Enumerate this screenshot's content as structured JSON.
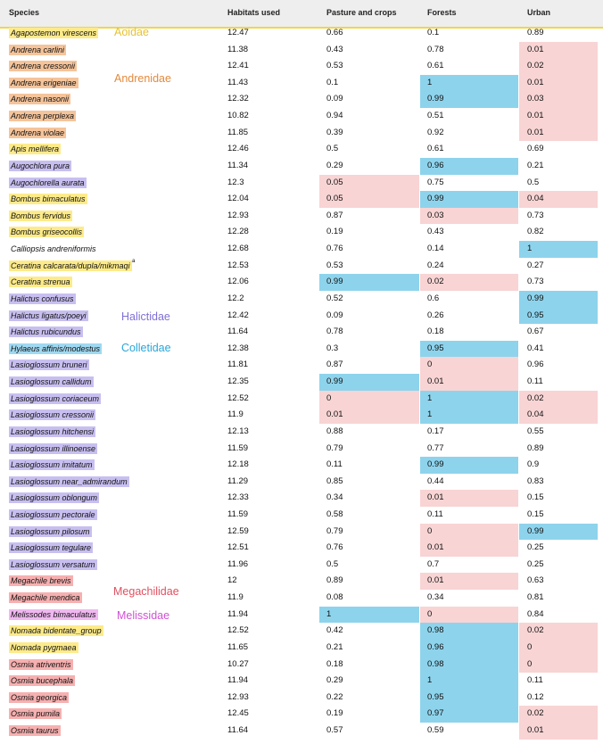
{
  "colors": {
    "low": "#f8d4d4",
    "high": "#8ed3ec",
    "header_bg": "#eeeeee",
    "header_border": "#f0d64a",
    "family": {
      "Apidae": "#fdeb8a",
      "Andrenidae": "#f5c49a",
      "Halictidae": "#c8bff0",
      "Colletidae": "#9fd8f0",
      "Megachilidae": "#f6b0b0",
      "Melissidae": "#f0b8f0",
      "none": "transparent"
    },
    "family_label": {
      "Apidae": "#e6c234",
      "Andrenidae": "#e38a3c",
      "Halictidae": "#8070d6",
      "Colletidae": "#2aa6d9",
      "Megachilidae": "#e05060",
      "Melissidae": "#cf52d4"
    }
  },
  "headers": [
    "Species",
    "Habitats used",
    "Pasture and crops",
    "Forests",
    "Urban"
  ],
  "family_labels": [
    {
      "key": "Apidae",
      "text": "Aoidae"
    },
    {
      "key": "Andrenidae",
      "text": "Andrenidae"
    },
    {
      "key": "Halictidae",
      "text": "Halictidae"
    },
    {
      "key": "Colletidae",
      "text": "Colletidae"
    },
    {
      "key": "Megachilidae",
      "text": "Megachilidae"
    },
    {
      "key": "Melissidae",
      "text": "Melissidae"
    }
  ],
  "rows": [
    {
      "species": "Agapostemon virescens",
      "family": "Apidae",
      "habitats": "12.47",
      "pasture": "0.66",
      "forests": "0.1",
      "urban": "0.89",
      "pasture_hl": "",
      "forests_hl": "",
      "urban_hl": ""
    },
    {
      "species": "Andrena carlini",
      "family": "Andrenidae",
      "habitats": "11.38",
      "pasture": "0.43",
      "forests": "0.78",
      "urban": "0.01",
      "pasture_hl": "",
      "forests_hl": "",
      "urban_hl": "low"
    },
    {
      "species": "Andrena cressonii",
      "family": "Andrenidae",
      "habitats": "12.41",
      "pasture": "0.53",
      "forests": "0.61",
      "urban": "0.02",
      "pasture_hl": "",
      "forests_hl": "",
      "urban_hl": "low"
    },
    {
      "species": "Andrena erigeniae",
      "family": "Andrenidae",
      "habitats": "11.43",
      "pasture": "0.1",
      "forests": "1",
      "urban": "0.01",
      "pasture_hl": "",
      "forests_hl": "high",
      "urban_hl": "low"
    },
    {
      "species": "Andrena nasonii",
      "family": "Andrenidae",
      "habitats": "12.32",
      "pasture": "0.09",
      "forests": "0.99",
      "urban": "0.03",
      "pasture_hl": "",
      "forests_hl": "high",
      "urban_hl": "low"
    },
    {
      "species": "Andrena perplexa",
      "family": "Andrenidae",
      "habitats": "10.82",
      "pasture": "0.94",
      "forests": "0.51",
      "urban": "0.01",
      "pasture_hl": "",
      "forests_hl": "",
      "urban_hl": "low"
    },
    {
      "species": "Andrena violae",
      "family": "Andrenidae",
      "habitats": "11.85",
      "pasture": "0.39",
      "forests": "0.92",
      "urban": "0.01",
      "pasture_hl": "",
      "forests_hl": "",
      "urban_hl": "low"
    },
    {
      "species": "Apis mellifera",
      "family": "Apidae",
      "habitats": "12.46",
      "pasture": "0.5",
      "forests": "0.61",
      "urban": "0.69",
      "pasture_hl": "",
      "forests_hl": "",
      "urban_hl": ""
    },
    {
      "species": "Augochlora pura",
      "family": "Halictidae",
      "habitats": "11.34",
      "pasture": "0.29",
      "forests": "0.96",
      "urban": "0.21",
      "pasture_hl": "",
      "forests_hl": "high",
      "urban_hl": ""
    },
    {
      "species": "Augochlorella aurata",
      "family": "Halictidae",
      "habitats": "12.3",
      "pasture": "0.05",
      "forests": "0.75",
      "urban": "0.5",
      "pasture_hl": "low",
      "forests_hl": "",
      "urban_hl": ""
    },
    {
      "species": "Bombus bimaculatus",
      "family": "Apidae",
      "habitats": "12.04",
      "pasture": "0.05",
      "forests": "0.99",
      "urban": "0.04",
      "pasture_hl": "low",
      "forests_hl": "high",
      "urban_hl": "low"
    },
    {
      "species": "Bombus fervidus",
      "family": "Apidae",
      "habitats": "12.93",
      "pasture": "0.87",
      "forests": "0.03",
      "urban": "0.73",
      "pasture_hl": "",
      "forests_hl": "low",
      "urban_hl": ""
    },
    {
      "species": "Bombus griseocollis",
      "family": "Apidae",
      "habitats": "12.28",
      "pasture": "0.19",
      "forests": "0.43",
      "urban": "0.82",
      "pasture_hl": "",
      "forests_hl": "",
      "urban_hl": ""
    },
    {
      "species": "Calliopsis andreniformis",
      "family": "none",
      "habitats": "12.68",
      "pasture": "0.76",
      "forests": "0.14",
      "urban": "1",
      "pasture_hl": "",
      "forests_hl": "",
      "urban_hl": "high"
    },
    {
      "species": "Ceratina calcarata/dupla/mikmaqi",
      "sup": "a",
      "family": "Apidae",
      "habitats": "12.53",
      "pasture": "0.53",
      "forests": "0.24",
      "urban": "0.27",
      "pasture_hl": "",
      "forests_hl": "",
      "urban_hl": ""
    },
    {
      "species": "Ceratina strenua",
      "family": "Apidae",
      "habitats": "12.06",
      "pasture": "0.99",
      "forests": "0.02",
      "urban": "0.73",
      "pasture_hl": "high",
      "forests_hl": "low",
      "urban_hl": ""
    },
    {
      "species": "Halictus confusus",
      "family": "Halictidae",
      "habitats": "12.2",
      "pasture": "0.52",
      "forests": "0.6",
      "urban": "0.99",
      "pasture_hl": "",
      "forests_hl": "",
      "urban_hl": "high"
    },
    {
      "species": "Halictus ligatus/poeyi",
      "family": "Halictidae",
      "habitats": "12.42",
      "pasture": "0.09",
      "forests": "0.26",
      "urban": "0.95",
      "pasture_hl": "",
      "forests_hl": "",
      "urban_hl": "high"
    },
    {
      "species": "Halictus rubicundus",
      "family": "Halictidae",
      "habitats": "11.64",
      "pasture": "0.78",
      "forests": "0.18",
      "urban": "0.67",
      "pasture_hl": "",
      "forests_hl": "",
      "urban_hl": ""
    },
    {
      "species": "Hylaeus affinis/modestus",
      "family": "Colletidae",
      "habitats": "12.38",
      "pasture": "0.3",
      "forests": "0.95",
      "urban": "0.41",
      "pasture_hl": "",
      "forests_hl": "high",
      "urban_hl": ""
    },
    {
      "species": "Lasioglossum bruneri",
      "family": "Halictidae",
      "habitats": "11.81",
      "pasture": "0.87",
      "forests": "0",
      "urban": "0.96",
      "pasture_hl": "",
      "forests_hl": "low",
      "urban_hl": ""
    },
    {
      "species": "Lasioglossum callidum",
      "family": "Halictidae",
      "habitats": "12.35",
      "pasture": "0.99",
      "forests": "0.01",
      "urban": "0.11",
      "pasture_hl": "high",
      "forests_hl": "low",
      "urban_hl": ""
    },
    {
      "species": "Lasioglossum coriaceum",
      "family": "Halictidae",
      "habitats": "12.52",
      "pasture": "0",
      "forests": "1",
      "urban": "0.02",
      "pasture_hl": "low",
      "forests_hl": "high",
      "urban_hl": "low"
    },
    {
      "species": "Lasioglossum cressonii",
      "family": "Halictidae",
      "habitats": "11.9",
      "pasture": "0.01",
      "forests": "1",
      "urban": "0.04",
      "pasture_hl": "low",
      "forests_hl": "high",
      "urban_hl": "low"
    },
    {
      "species": "Lasioglossum hitchensi",
      "family": "Halictidae",
      "habitats": "12.13",
      "pasture": "0.88",
      "forests": "0.17",
      "urban": "0.55",
      "pasture_hl": "",
      "forests_hl": "",
      "urban_hl": ""
    },
    {
      "species": "Lasioglossum illinoense",
      "family": "Halictidae",
      "habitats": "11.59",
      "pasture": "0.79",
      "forests": "0.77",
      "urban": "0.89",
      "pasture_hl": "",
      "forests_hl": "",
      "urban_hl": ""
    },
    {
      "species": "Lasioglossum imitatum",
      "family": "Halictidae",
      "habitats": "12.18",
      "pasture": "0.11",
      "forests": "0.99",
      "urban": "0.9",
      "pasture_hl": "",
      "forests_hl": "high",
      "urban_hl": ""
    },
    {
      "species": "Lasioglossum near_admirandum",
      "family": "Halictidae",
      "habitats": "11.29",
      "pasture": "0.85",
      "forests": "0.44",
      "urban": "0.83",
      "pasture_hl": "",
      "forests_hl": "",
      "urban_hl": ""
    },
    {
      "species": "Lasioglossum oblongum",
      "family": "Halictidae",
      "habitats": "12.33",
      "pasture": "0.34",
      "forests": "0.01",
      "urban": "0.15",
      "pasture_hl": "",
      "forests_hl": "low",
      "urban_hl": ""
    },
    {
      "species": "Lasioglossum pectorale",
      "family": "Halictidae",
      "habitats": "11.59",
      "pasture": "0.58",
      "forests": "0.11",
      "urban": "0.15",
      "pasture_hl": "",
      "forests_hl": "",
      "urban_hl": ""
    },
    {
      "species": "Lasioglossum pilosum",
      "family": "Halictidae",
      "habitats": "12.59",
      "pasture": "0.79",
      "forests": "0",
      "urban": "0.99",
      "pasture_hl": "",
      "forests_hl": "low",
      "urban_hl": "high"
    },
    {
      "species": "Lasioglossum tegulare",
      "family": "Halictidae",
      "habitats": "12.51",
      "pasture": "0.76",
      "forests": "0.01",
      "urban": "0.25",
      "pasture_hl": "",
      "forests_hl": "low",
      "urban_hl": ""
    },
    {
      "species": "Lasioglossum versatum",
      "family": "Halictidae",
      "habitats": "11.96",
      "pasture": "0.5",
      "forests": "0.7",
      "urban": "0.25",
      "pasture_hl": "",
      "forests_hl": "",
      "urban_hl": ""
    },
    {
      "species": "Megachile brevis",
      "family": "Megachilidae",
      "habitats": "12",
      "pasture": "0.89",
      "forests": "0.01",
      "urban": "0.63",
      "pasture_hl": "",
      "forests_hl": "low",
      "urban_hl": ""
    },
    {
      "species": "Megachile mendica",
      "family": "Megachilidae",
      "habitats": "11.9",
      "pasture": "0.08",
      "forests": "0.34",
      "urban": "0.81",
      "pasture_hl": "",
      "forests_hl": "",
      "urban_hl": ""
    },
    {
      "species": "Melissodes bimaculatus",
      "family": "Melissidae",
      "habitats": "11.94",
      "pasture": "1",
      "forests": "0",
      "urban": "0.84",
      "pasture_hl": "high",
      "forests_hl": "low",
      "urban_hl": ""
    },
    {
      "species": "Nomada bidentate_group",
      "family": "Apidae",
      "habitats": "12.52",
      "pasture": "0.42",
      "forests": "0.98",
      "urban": "0.02",
      "pasture_hl": "",
      "forests_hl": "high",
      "urban_hl": "low"
    },
    {
      "species": "Nomada pygmaea",
      "family": "Apidae",
      "habitats": "11.65",
      "pasture": "0.21",
      "forests": "0.96",
      "urban": "0",
      "pasture_hl": "",
      "forests_hl": "high",
      "urban_hl": "low"
    },
    {
      "species": "Osmia atriventris",
      "family": "Megachilidae",
      "habitats": "10.27",
      "pasture": "0.18",
      "forests": "0.98",
      "urban": "0",
      "pasture_hl": "",
      "forests_hl": "high",
      "urban_hl": "low"
    },
    {
      "species": "Osmia bucephala",
      "family": "Megachilidae",
      "habitats": "11.94",
      "pasture": "0.29",
      "forests": "1",
      "urban": "0.11",
      "pasture_hl": "",
      "forests_hl": "high",
      "urban_hl": ""
    },
    {
      "species": "Osmia georgica",
      "family": "Megachilidae",
      "habitats": "12.93",
      "pasture": "0.22",
      "forests": "0.95",
      "urban": "0.12",
      "pasture_hl": "",
      "forests_hl": "high",
      "urban_hl": ""
    },
    {
      "species": "Osmia pumila",
      "family": "Megachilidae",
      "habitats": "12.45",
      "pasture": "0.19",
      "forests": "0.97",
      "urban": "0.02",
      "pasture_hl": "",
      "forests_hl": "high",
      "urban_hl": "low"
    },
    {
      "species": "Osmia taurus",
      "family": "Megachilidae",
      "habitats": "11.64",
      "pasture": "0.57",
      "forests": "0.59",
      "urban": "0.01",
      "pasture_hl": "",
      "forests_hl": "",
      "urban_hl": "low"
    }
  ]
}
